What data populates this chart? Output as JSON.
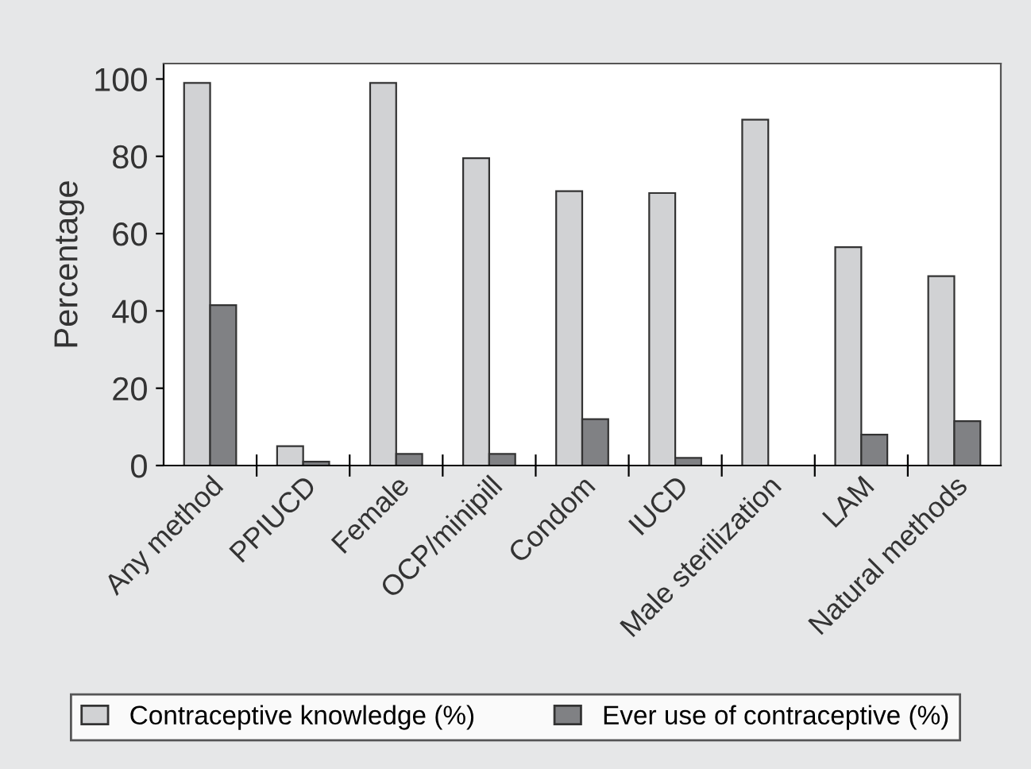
{
  "chart_data": {
    "type": "bar",
    "ylabel": "Percentage",
    "categories": [
      "Any method",
      "PPIUCD",
      "Female",
      "OCP/minipill",
      "Condom",
      "IUCD",
      "Male sterilization",
      "LAM",
      "Natural methods"
    ],
    "series": [
      {
        "name": "Contraceptive knowledge (%)",
        "color": "#d1d2d4",
        "values": [
          99,
          5,
          99,
          79.5,
          71,
          70.5,
          89.5,
          56.5,
          49
        ]
      },
      {
        "name": "Ever use of contraceptive (%)",
        "color": "#808184",
        "values": [
          41.5,
          1,
          3,
          3,
          12,
          2,
          null,
          8,
          11.5
        ]
      }
    ],
    "ylim": [
      0,
      104
    ],
    "yticks": [
      0,
      20,
      40,
      60,
      80,
      100
    ],
    "grid": false,
    "legend": "bottom"
  }
}
